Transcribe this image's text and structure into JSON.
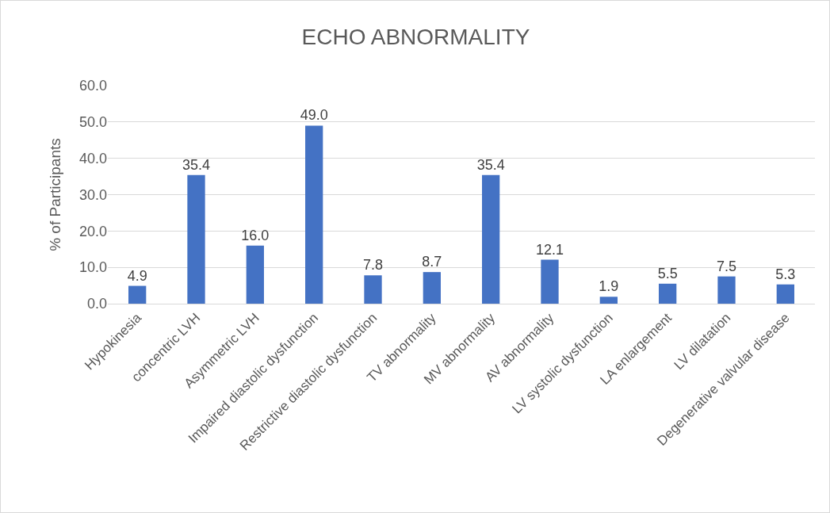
{
  "chart_data": {
    "type": "bar",
    "title": "ECHO ABNORMALITY",
    "ylabel": "% of Participants",
    "categories": [
      "Hypokinesia",
      "concentric LVH",
      "Asymmetric LVH",
      "Impaired diastolic dysfunction",
      "Restrictive diastolic dysfunction",
      "TV abnormality",
      "MV abnormality",
      "AV abnormality",
      "LV systolic dysfunction",
      "LA enlargement",
      "LV dilatation",
      "Degenerative valvular disease"
    ],
    "values": [
      4.9,
      35.4,
      16.0,
      49.0,
      7.8,
      8.7,
      35.4,
      12.1,
      1.9,
      5.5,
      7.5,
      5.3
    ],
    "value_labels": [
      "4.9",
      "35.4",
      "16.0",
      "49.0",
      "7.8",
      "8.7",
      "35.4",
      "12.1",
      "1.9",
      "5.5",
      "7.5",
      "5.3"
    ],
    "color": "#4472c4",
    "ylim": [
      0,
      60
    ],
    "yticks": [
      {
        "value": 0,
        "label": "0.0"
      },
      {
        "value": 10,
        "label": "10.0"
      },
      {
        "value": 20,
        "label": "20.0"
      },
      {
        "value": 30,
        "label": "30.0"
      },
      {
        "value": 40,
        "label": "40.0"
      },
      {
        "value": 50,
        "label": "50.0"
      },
      {
        "value": 60,
        "label": "60.0"
      }
    ],
    "grid": "y"
  }
}
